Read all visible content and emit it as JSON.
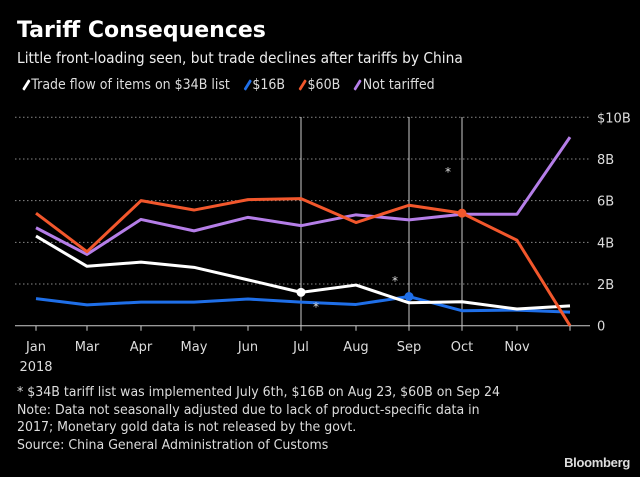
{
  "chart_data": {
    "type": "line",
    "title": "Tariff Consequences",
    "subtitle": "Little front-loading seen, but trade declines after tariffs by China",
    "categories": [
      "Jan",
      "Mar",
      "Apr",
      "May",
      "Jun",
      "Jul",
      "Aug",
      "Sep",
      "Oct",
      "Nov",
      ""
    ],
    "x_sublabel": "2018",
    "y_ticks": [
      "0",
      "2B",
      "4B",
      "6B",
      "8B",
      "$10B"
    ],
    "y_tick_values": [
      0,
      2,
      4,
      6,
      8,
      10
    ],
    "ylim": [
      0,
      10
    ],
    "y_axis_position": "right",
    "grid": "horizontal dotted",
    "legend_position": "top-left",
    "series": [
      {
        "name": "Trade flow of items on $34B list",
        "color": "#ffffff",
        "values": [
          4.3,
          2.85,
          3.05,
          2.8,
          2.2,
          1.6,
          1.95,
          1.1,
          1.15,
          0.8,
          0.95
        ],
        "marker_at": "Jul"
      },
      {
        "name": "$16B",
        "color": "#1f6fe8",
        "values": [
          1.3,
          1.0,
          1.13,
          1.13,
          1.28,
          1.13,
          1.02,
          1.4,
          0.72,
          0.75,
          0.65
        ],
        "marker_at": "Sep"
      },
      {
        "name": "$60B",
        "color": "#f2572c",
        "values": [
          5.4,
          3.55,
          6.0,
          5.55,
          6.05,
          6.1,
          4.95,
          5.78,
          5.4,
          4.1,
          0.0
        ],
        "marker_at": "Oct"
      },
      {
        "name": "Not tariffed",
        "color": "#b57ee8",
        "values": [
          4.7,
          3.42,
          5.1,
          4.55,
          5.2,
          4.8,
          5.32,
          5.08,
          5.35,
          5.35,
          9.05
        ]
      }
    ],
    "vertical_lines_at": [
      "Jul",
      "Sep",
      "Oct"
    ],
    "annotation_symbol": "*"
  },
  "footnotes": {
    "asterisk": "* $34B tariff list was implemented July 6th, $16B on Aug 23, $60B on Sep 24",
    "note": "Note: Data not seasonally adjusted due to lack of product-specific data in 2017; Monetary gold data is not released by the govt.",
    "source": "Source: China General Administration of Customs"
  },
  "brand": "Bloomberg"
}
